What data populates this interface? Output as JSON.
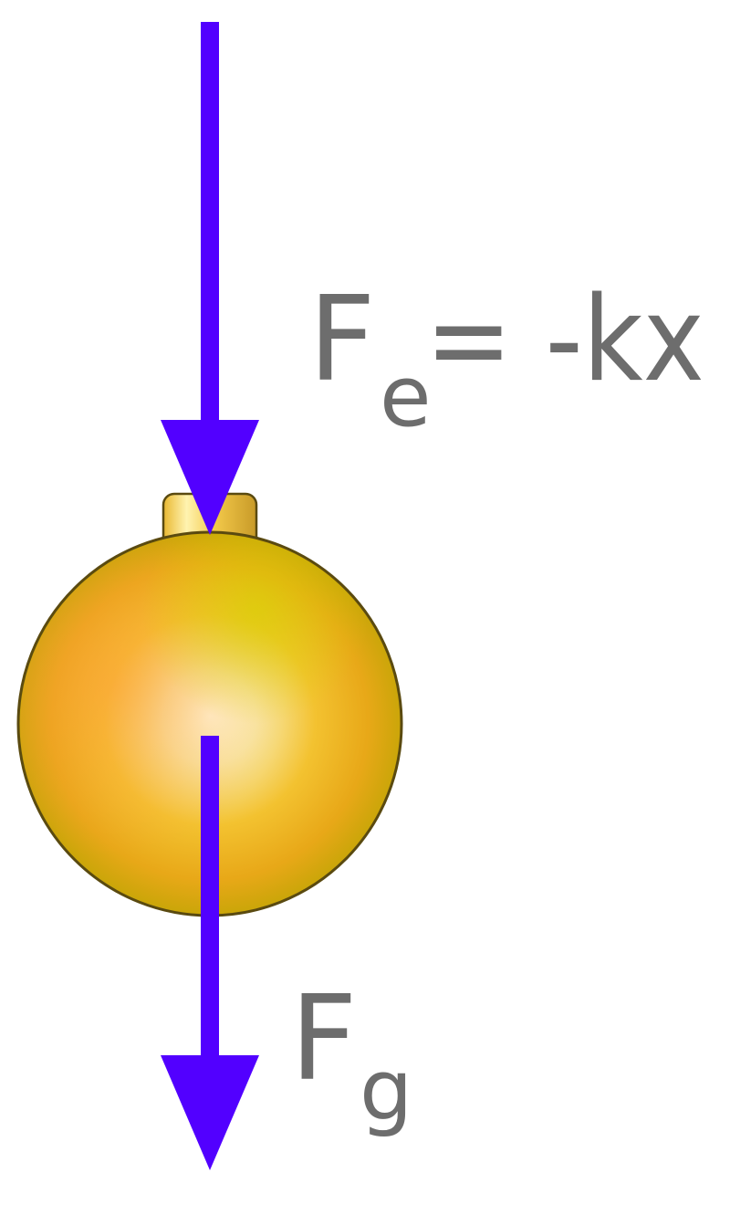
{
  "diagram": {
    "colors": {
      "arrow": "#5200ff",
      "label": "#6d6d6d",
      "ball_highlight": "#fdf8d8",
      "ball_mid": "#f0c000",
      "ball_edge": "#b8a800",
      "ball_outline": "#5a4a10",
      "cap": "#f2c84a"
    },
    "elastic_force": {
      "symbol": "F",
      "subscript": "e",
      "equation": "= -kx"
    },
    "gravity_force": {
      "symbol": "F",
      "subscript": "g"
    }
  }
}
